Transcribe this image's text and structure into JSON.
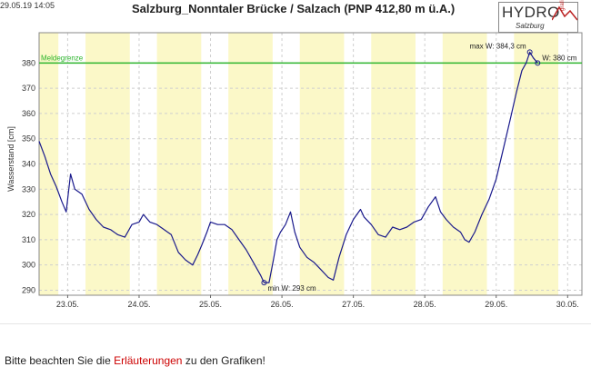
{
  "stamp": "29.05.19 14:05",
  "chart_data": {
    "type": "line",
    "title": "Salzburg_Nonntaler Brücke / Salzach (PNP 412,80 m ü.A.)",
    "ylabel": "Wasserstand [cm]",
    "xlabel": "",
    "ylim": [
      288,
      392
    ],
    "xlim": [
      22.6,
      30.2
    ],
    "grid": true,
    "day_ticks": [
      {
        "x": 23,
        "label": "23.05."
      },
      {
        "x": 24,
        "label": "24.05."
      },
      {
        "x": 25,
        "label": "25.05."
      },
      {
        "x": 26,
        "label": "26.05."
      },
      {
        "x": 27,
        "label": "27.05."
      },
      {
        "x": 28,
        "label": "28.05."
      },
      {
        "x": 29,
        "label": "29.05."
      },
      {
        "x": 30,
        "label": "30.05."
      }
    ],
    "y_ticks": [
      290,
      300,
      310,
      320,
      330,
      340,
      350,
      360,
      370,
      380
    ],
    "shaded_daytime": [
      [
        22.6,
        22.87
      ],
      [
        23.25,
        23.87
      ],
      [
        24.25,
        24.87
      ],
      [
        25.25,
        25.87
      ],
      [
        26.25,
        26.87
      ],
      [
        27.25,
        27.87
      ],
      [
        28.25,
        28.87
      ],
      [
        29.25,
        29.87
      ]
    ],
    "threshold": {
      "label": "Meldegrenze",
      "value": 380,
      "color": "#2db52d"
    },
    "series": [
      {
        "color": "#1a1a8c",
        "points": [
          [
            22.6,
            349
          ],
          [
            22.68,
            343
          ],
          [
            22.76,
            336
          ],
          [
            22.84,
            331
          ],
          [
            22.92,
            325
          ],
          [
            22.98,
            321
          ],
          [
            23.04,
            336
          ],
          [
            23.1,
            330
          ],
          [
            23.2,
            328
          ],
          [
            23.3,
            322
          ],
          [
            23.4,
            318
          ],
          [
            23.5,
            315
          ],
          [
            23.6,
            314
          ],
          [
            23.7,
            312
          ],
          [
            23.8,
            311
          ],
          [
            23.9,
            316
          ],
          [
            24.0,
            317
          ],
          [
            24.06,
            320
          ],
          [
            24.15,
            317
          ],
          [
            24.25,
            316
          ],
          [
            24.35,
            314
          ],
          [
            24.45,
            312
          ],
          [
            24.55,
            305
          ],
          [
            24.65,
            302
          ],
          [
            24.75,
            300
          ],
          [
            24.82,
            304
          ],
          [
            24.88,
            308
          ],
          [
            24.95,
            313
          ],
          [
            25.0,
            317
          ],
          [
            25.1,
            316
          ],
          [
            25.2,
            316
          ],
          [
            25.3,
            314
          ],
          [
            25.4,
            310
          ],
          [
            25.5,
            306
          ],
          [
            25.6,
            301
          ],
          [
            25.7,
            296
          ],
          [
            25.75,
            293
          ],
          [
            25.82,
            293
          ],
          [
            25.88,
            302
          ],
          [
            25.93,
            310
          ],
          [
            25.98,
            313
          ],
          [
            26.05,
            316
          ],
          [
            26.12,
            321
          ],
          [
            26.18,
            313
          ],
          [
            26.25,
            307
          ],
          [
            26.35,
            303
          ],
          [
            26.45,
            301
          ],
          [
            26.55,
            298
          ],
          [
            26.65,
            295
          ],
          [
            26.72,
            294
          ],
          [
            26.8,
            303
          ],
          [
            26.9,
            312
          ],
          [
            27.0,
            318
          ],
          [
            27.1,
            322
          ],
          [
            27.15,
            319
          ],
          [
            27.25,
            316
          ],
          [
            27.35,
            312
          ],
          [
            27.45,
            311
          ],
          [
            27.55,
            315
          ],
          [
            27.65,
            314
          ],
          [
            27.75,
            315
          ],
          [
            27.85,
            317
          ],
          [
            27.95,
            318
          ],
          [
            28.05,
            323
          ],
          [
            28.15,
            327
          ],
          [
            28.22,
            321
          ],
          [
            28.3,
            318
          ],
          [
            28.4,
            315
          ],
          [
            28.5,
            313
          ],
          [
            28.56,
            310
          ],
          [
            28.62,
            309
          ],
          [
            28.7,
            313
          ],
          [
            28.8,
            320
          ],
          [
            28.9,
            326
          ],
          [
            29.0,
            334
          ],
          [
            29.1,
            346
          ],
          [
            29.2,
            358
          ],
          [
            29.28,
            368
          ],
          [
            29.36,
            377
          ],
          [
            29.42,
            380
          ],
          [
            29.47,
            384.3
          ],
          [
            29.52,
            382
          ],
          [
            29.58,
            380
          ]
        ]
      }
    ],
    "annotations": [
      {
        "text": "max W: 384,3 cm",
        "x": 29.47,
        "y": 384.3
      },
      {
        "text": "W: 380 cm",
        "x": 29.58,
        "y": 380
      },
      {
        "text": "min W: 293 cm",
        "x": 25.75,
        "y": 293
      }
    ]
  },
  "logo": {
    "main": "HYDRO",
    "sub": "Salzburg",
    "grafik": "grafik"
  },
  "footer": {
    "before": "Bitte beachten Sie die ",
    "link": "Erläuterungen",
    "after": " zu den Grafiken!"
  }
}
